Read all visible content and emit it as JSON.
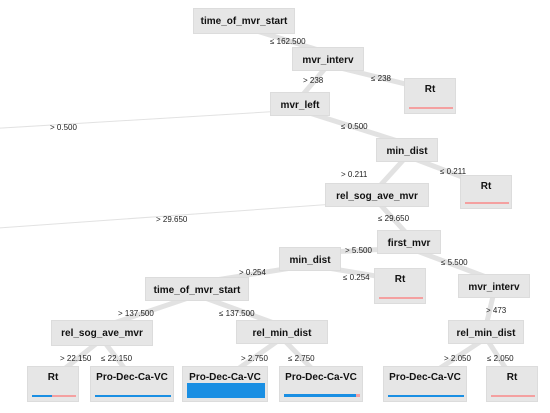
{
  "tree": {
    "colors": {
      "red": "#f4a0a0",
      "blue": "#1a8fe3",
      "node_bg": "#e6e6e6",
      "edge": "#e2e2e2"
    },
    "nodes": [
      {
        "id": "n1",
        "label": "time_of_mvr_start",
        "kind": "split"
      },
      {
        "id": "n2",
        "label": "mvr_interv",
        "kind": "split"
      },
      {
        "id": "n3",
        "label": "Rt",
        "kind": "leaf",
        "bar": "red"
      },
      {
        "id": "n4",
        "label": "mvr_left",
        "kind": "split"
      },
      {
        "id": "n5",
        "label": "min_dist",
        "kind": "split"
      },
      {
        "id": "n6",
        "label": "Rt",
        "kind": "leaf",
        "bar": "red"
      },
      {
        "id": "n7",
        "label": "rel_sog_ave_mvr",
        "kind": "split"
      },
      {
        "id": "n8",
        "label": "first_mvr",
        "kind": "split"
      },
      {
        "id": "n9",
        "label": "min_dist",
        "kind": "split"
      },
      {
        "id": "n10",
        "label": "Rt",
        "kind": "leaf",
        "bar": "red"
      },
      {
        "id": "n11",
        "label": "mvr_interv",
        "kind": "split"
      },
      {
        "id": "n12",
        "label": "time_of_mvr_start",
        "kind": "split"
      },
      {
        "id": "n13",
        "label": "rel_min_dist",
        "kind": "split"
      },
      {
        "id": "n14",
        "label": "rel_sog_ave_mvr",
        "kind": "split"
      },
      {
        "id": "n15",
        "label": "rel_min_dist",
        "kind": "split"
      },
      {
        "id": "n16",
        "label": "Rt",
        "kind": "leaf",
        "bar": "mixed"
      },
      {
        "id": "n17",
        "label": "Pro-Dec-Ca-VC",
        "kind": "leaf",
        "bar": "blue"
      },
      {
        "id": "n18",
        "label": "Pro-Dec-Ca-VC",
        "kind": "leaf",
        "bar": "blue-full"
      },
      {
        "id": "n19",
        "label": "Pro-Dec-Ca-VC",
        "kind": "leaf",
        "bar": "blue-tip"
      },
      {
        "id": "n20",
        "label": "Pro-Dec-Ca-VC",
        "kind": "leaf",
        "bar": "blue"
      },
      {
        "id": "n21",
        "label": "Rt",
        "kind": "leaf",
        "bar": "red"
      }
    ],
    "edges": [
      {
        "from": "n1",
        "to": "n2",
        "label": "≤ 162.500"
      },
      {
        "from": "n2",
        "to": "n4",
        "label": "> 238"
      },
      {
        "from": "n2",
        "to": "n3",
        "label": "≤ 238"
      },
      {
        "from": "n4",
        "to": "offleft1",
        "label": "> 0.500"
      },
      {
        "from": "n4",
        "to": "n5",
        "label": "≤ 0.500"
      },
      {
        "from": "n5",
        "to": "n7",
        "label": "> 0.211"
      },
      {
        "from": "n5",
        "to": "n6",
        "label": "≤ 0.211"
      },
      {
        "from": "n7",
        "to": "offleft2",
        "label": "> 29.650"
      },
      {
        "from": "n7",
        "to": "n8",
        "label": "≤ 29.650"
      },
      {
        "from": "n8",
        "to": "n9",
        "label": "> 5.500"
      },
      {
        "from": "n8",
        "to": "n11",
        "label": "≤ 5.500"
      },
      {
        "from": "n9",
        "to": "n12",
        "label": "> 0.254"
      },
      {
        "from": "n9",
        "to": "n10",
        "label": "≤ 0.254"
      },
      {
        "from": "n12",
        "to": "n14",
        "label": "> 137.500"
      },
      {
        "from": "n12",
        "to": "n13",
        "label": "≤ 137.500"
      },
      {
        "from": "n11",
        "to": "n15",
        "label": "> 473"
      },
      {
        "from": "n14",
        "to": "n16",
        "label": "> 22.150"
      },
      {
        "from": "n14",
        "to": "n17",
        "label": "≤ 22.150"
      },
      {
        "from": "n13",
        "to": "n18",
        "label": "> 2.750"
      },
      {
        "from": "n13",
        "to": "n19",
        "label": "≤ 2.750"
      },
      {
        "from": "n15",
        "to": "n20",
        "label": "> 2.050"
      },
      {
        "from": "n15",
        "to": "n21",
        "label": "≤ 2.050"
      }
    ]
  }
}
